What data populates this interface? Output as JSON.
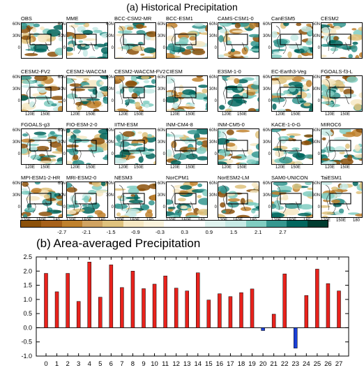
{
  "figure": {
    "title_a": "(a) Historical Precipitation",
    "title_b": "(b) Area-averaged Precipitation"
  },
  "maps": {
    "models": [
      "OBS",
      "MME",
      "BCC-CSM2-MR",
      "BCC-ESM1",
      "CAMS-CSM1-0",
      "CanESM5",
      "CESM2",
      "CESM2-FV2",
      "CESM2-WACCM",
      "CESM2-WACCM-FV2",
      "CIESM",
      "E3SM-1-0",
      "EC-Earth3-Veg",
      "FGOALS-f3-L",
      "FGOALS-g3",
      "FIO-ESM-2-0",
      "IITM-ESM",
      "INM-CM4-8",
      "INM-CM5-0",
      "KACE-1-0-G",
      "MIROC6",
      "MPI-ESM1-2-HR",
      "MRI-ESM2-0",
      "NESM3",
      "NorCPM1",
      "NorESM2-LM",
      "SAM0-UNICON",
      "TaiESM1"
    ],
    "lat_labels": [
      "60N",
      "30N",
      "0"
    ],
    "lon_labels": [
      "120E",
      "150E",
      "180"
    ],
    "colorbar_ticks": [
      "-2.7",
      "-2.1",
      "-1.5",
      "-0.9",
      "-0.3",
      "0.3",
      "0.9",
      "1.5",
      "2.1",
      "2.7"
    ],
    "colorbar_colors": [
      "#8c510a",
      "#a6611a",
      "#bf812d",
      "#d0a361",
      "#dfc27d",
      "#f6e8c3",
      "#faf3dd",
      "#ffffff",
      "#ffffff",
      "#e0f3ef",
      "#c7eae5",
      "#80cdc1",
      "#35978f",
      "#01665e",
      "#003c30"
    ]
  },
  "chart_data": {
    "type": "bar",
    "title": "(b) Area-averaged Precipitation",
    "categories": [
      "0",
      "1",
      "2",
      "3",
      "4",
      "5",
      "6",
      "7",
      "8",
      "9",
      "10",
      "11",
      "12",
      "13",
      "14",
      "15",
      "16",
      "17",
      "18",
      "19",
      "20",
      "21",
      "22",
      "23",
      "24",
      "25",
      "26",
      "27"
    ],
    "values": [
      1.92,
      1.27,
      1.92,
      0.93,
      2.32,
      1.08,
      2.22,
      1.42,
      2.0,
      1.38,
      1.54,
      1.83,
      1.4,
      1.3,
      1.94,
      0.98,
      1.2,
      1.1,
      1.24,
      1.37,
      -0.1,
      0.48,
      1.9,
      -0.72,
      1.14,
      2.07,
      1.56,
      1.3
    ],
    "ylim": [
      -1.0,
      2.5
    ],
    "yticks": [
      "-1.0",
      "-0.5",
      "0.0",
      "0.5",
      "1.0",
      "1.5",
      "2.0",
      "2.5"
    ],
    "colors": {
      "positive": "#e8221c",
      "negative": "#1a3fd6"
    },
    "xlabel": "",
    "ylabel": ""
  }
}
